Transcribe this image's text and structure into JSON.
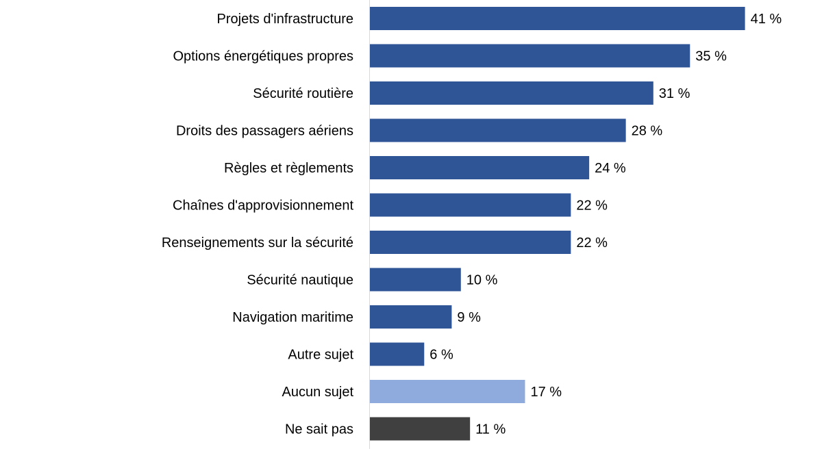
{
  "chart_data": {
    "type": "bar",
    "orientation": "horizontal",
    "title": "",
    "xlabel": "",
    "ylabel": "",
    "xlim": [
      0,
      48
    ],
    "grid": false,
    "legend": "none",
    "categories": [
      "Projets d'infrastructure",
      "Options énergétiques propres",
      "Sécurité routière",
      "Droits des passagers aériens",
      "Règles et règlements ",
      "Chaînes d'approvisionnement",
      "Renseignements sur la sécurité",
      "Sécurité nautique",
      "Navigation maritime",
      "Autre sujet",
      "Aucun sujet",
      "Ne sait pas"
    ],
    "values": [
      41,
      35,
      31,
      28,
      24,
      22,
      22,
      10,
      9,
      6,
      17,
      11
    ],
    "data_labels": [
      "41 %",
      "35 %",
      "31 %",
      "28 %",
      "24 %",
      "22 %",
      "22 %",
      "10 %",
      "9 %",
      "6 %",
      "17 %",
      "11 %"
    ],
    "colors": [
      "#2F5597",
      "#2F5597",
      "#2F5597",
      "#2F5597",
      "#2F5597",
      "#2F5597",
      "#2F5597",
      "#2F5597",
      "#2F5597",
      "#2F5597",
      "#8FAADC",
      "#404040"
    ],
    "axis_color": "#D9D9D9"
  }
}
